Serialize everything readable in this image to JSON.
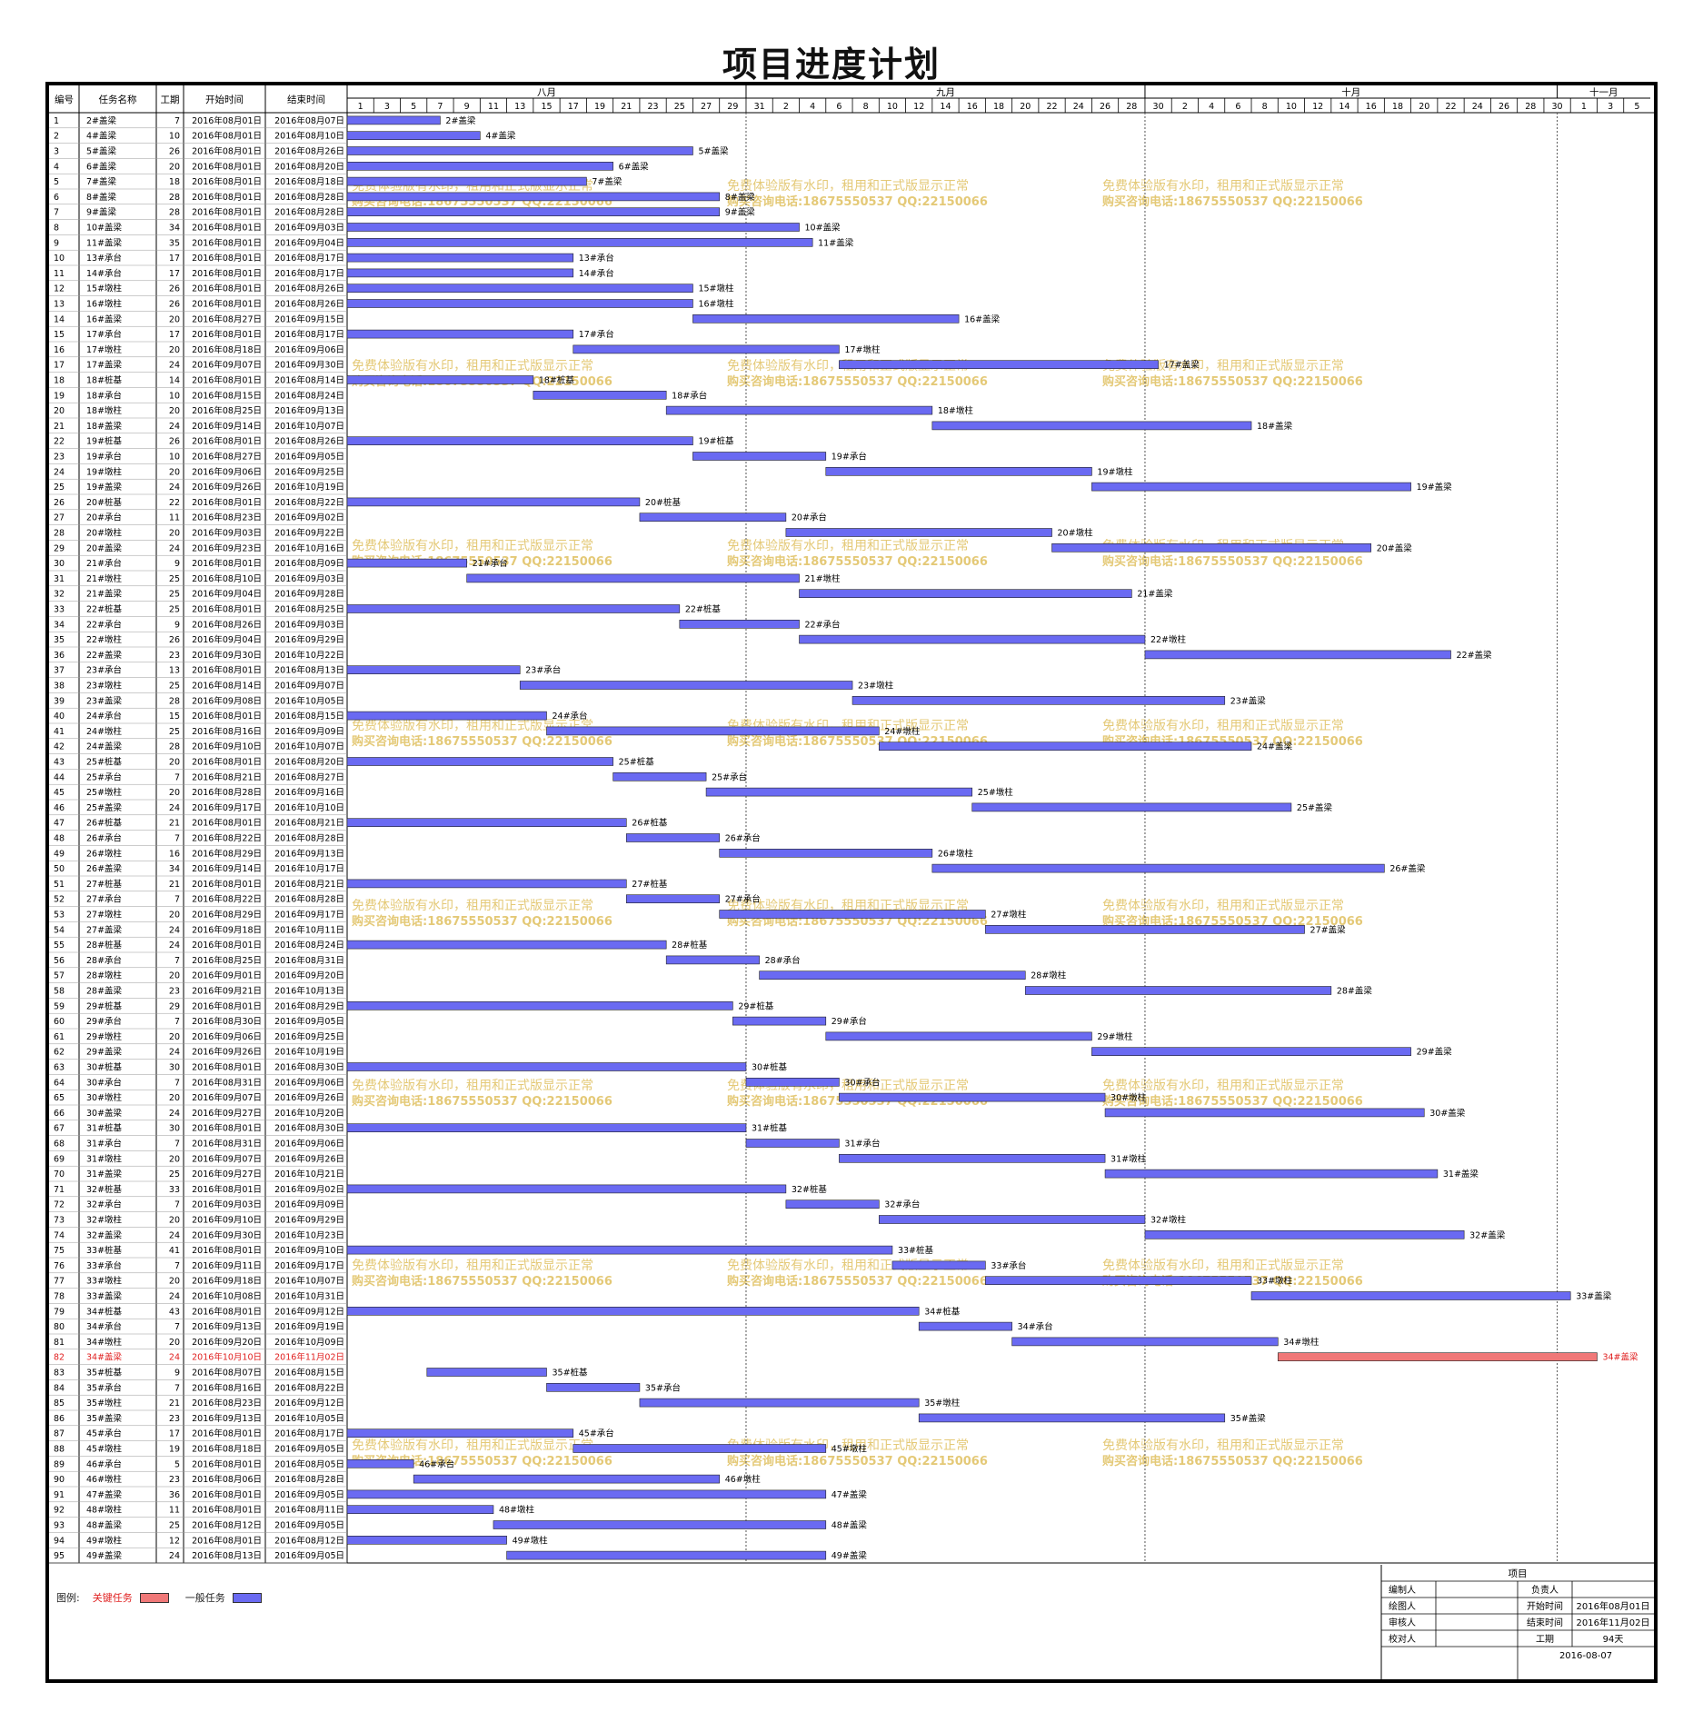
{
  "title": "项目进度计划",
  "table_headers": [
    "编号",
    "任务名称",
    "工期",
    "开始时间",
    "结束时间"
  ],
  "months": [
    {
      "label": "八月",
      "start": "2016-08-01"
    },
    {
      "label": "九月",
      "start": "2016-08-31"
    },
    {
      "label": "十月",
      "start": "2016-09-30"
    },
    {
      "label": "十一月",
      "start": "2016-10-31"
    }
  ],
  "day_ticks": [
    "1",
    "3",
    "5",
    "7",
    "9",
    "11",
    "13",
    "15",
    "17",
    "19",
    "21",
    "23",
    "25",
    "27",
    "29",
    "31",
    "2",
    "4",
    "6",
    "8",
    "10",
    "12",
    "14",
    "16",
    "18",
    "20",
    "22",
    "24",
    "26",
    "28",
    "30",
    "2",
    "4",
    "6",
    "8",
    "10",
    "12",
    "14",
    "16",
    "18",
    "20",
    "22",
    "24",
    "26",
    "28",
    "30",
    "1",
    "3",
    "5"
  ],
  "watermark": {
    "line1": "免费体验版有水印，租用和正式版显示正常",
    "line2": "购买咨询电话:18675550537 QQ:22150066"
  },
  "legend": {
    "label": "图例:",
    "critical": "关键任务",
    "normal": "一般任务"
  },
  "info_block": {
    "heading": "项目",
    "rows": [
      {
        "k1": "编制人",
        "v1": "",
        "k2": "负责人",
        "v2": ""
      },
      {
        "k1": "绘图人",
        "v1": "",
        "k2": "开始时间",
        "v2": "2016年08月01日"
      },
      {
        "k1": "审核人",
        "v1": "",
        "k2": "结束时间",
        "v2": "2016年11月02日"
      },
      {
        "k1": "校对人",
        "v1": "",
        "k2": "工期",
        "v2": "94天"
      }
    ],
    "date": "2016-08-07"
  },
  "colors": {
    "normal": "#6a6af2",
    "critical": "#f07878",
    "critical_text": "#e02020",
    "watermark": "#e0c060"
  },
  "chart_data": {
    "type": "gantt",
    "x_range": [
      "2016-08-01",
      "2016-11-06"
    ],
    "tasks": [
      {
        "id": 1,
        "name": "2#盖梁",
        "duration": 7,
        "start": "2016年08月01日",
        "end": "2016年08月07日"
      },
      {
        "id": 2,
        "name": "4#盖梁",
        "duration": 10,
        "start": "2016年08月01日",
        "end": "2016年08月10日"
      },
      {
        "id": 3,
        "name": "5#盖梁",
        "duration": 26,
        "start": "2016年08月01日",
        "end": "2016年08月26日"
      },
      {
        "id": 4,
        "name": "6#盖梁",
        "duration": 20,
        "start": "2016年08月01日",
        "end": "2016年08月20日"
      },
      {
        "id": 5,
        "name": "7#盖梁",
        "duration": 18,
        "start": "2016年08月01日",
        "end": "2016年08月18日"
      },
      {
        "id": 6,
        "name": "8#盖梁",
        "duration": 28,
        "start": "2016年08月01日",
        "end": "2016年08月28日"
      },
      {
        "id": 7,
        "name": "9#盖梁",
        "duration": 28,
        "start": "2016年08月01日",
        "end": "2016年08月28日"
      },
      {
        "id": 8,
        "name": "10#盖梁",
        "duration": 34,
        "start": "2016年08月01日",
        "end": "2016年09月03日"
      },
      {
        "id": 9,
        "name": "11#盖梁",
        "duration": 35,
        "start": "2016年08月01日",
        "end": "2016年09月04日"
      },
      {
        "id": 10,
        "name": "13#承台",
        "duration": 17,
        "start": "2016年08月01日",
        "end": "2016年08月17日"
      },
      {
        "id": 11,
        "name": "14#承台",
        "duration": 17,
        "start": "2016年08月01日",
        "end": "2016年08月17日"
      },
      {
        "id": 12,
        "name": "15#墩柱",
        "duration": 26,
        "start": "2016年08月01日",
        "end": "2016年08月26日"
      },
      {
        "id": 13,
        "name": "16#墩柱",
        "duration": 26,
        "start": "2016年08月01日",
        "end": "2016年08月26日"
      },
      {
        "id": 14,
        "name": "16#盖梁",
        "duration": 20,
        "start": "2016年08月27日",
        "end": "2016年09月15日"
      },
      {
        "id": 15,
        "name": "17#承台",
        "duration": 17,
        "start": "2016年08月01日",
        "end": "2016年08月17日"
      },
      {
        "id": 16,
        "name": "17#墩柱",
        "duration": 20,
        "start": "2016年08月18日",
        "end": "2016年09月06日"
      },
      {
        "id": 17,
        "name": "17#盖梁",
        "duration": 24,
        "start": "2016年09月07日",
        "end": "2016年09月30日"
      },
      {
        "id": 18,
        "name": "18#桩基",
        "duration": 14,
        "start": "2016年08月01日",
        "end": "2016年08月14日"
      },
      {
        "id": 19,
        "name": "18#承台",
        "duration": 10,
        "start": "2016年08月15日",
        "end": "2016年08月24日"
      },
      {
        "id": 20,
        "name": "18#墩柱",
        "duration": 20,
        "start": "2016年08月25日",
        "end": "2016年09月13日"
      },
      {
        "id": 21,
        "name": "18#盖梁",
        "duration": 24,
        "start": "2016年09月14日",
        "end": "2016年10月07日"
      },
      {
        "id": 22,
        "name": "19#桩基",
        "duration": 26,
        "start": "2016年08月01日",
        "end": "2016年08月26日"
      },
      {
        "id": 23,
        "name": "19#承台",
        "duration": 10,
        "start": "2016年08月27日",
        "end": "2016年09月05日"
      },
      {
        "id": 24,
        "name": "19#墩柱",
        "duration": 20,
        "start": "2016年09月06日",
        "end": "2016年09月25日"
      },
      {
        "id": 25,
        "name": "19#盖梁",
        "duration": 24,
        "start": "2016年09月26日",
        "end": "2016年10月19日"
      },
      {
        "id": 26,
        "name": "20#桩基",
        "duration": 22,
        "start": "2016年08月01日",
        "end": "2016年08月22日"
      },
      {
        "id": 27,
        "name": "20#承台",
        "duration": 11,
        "start": "2016年08月23日",
        "end": "2016年09月02日"
      },
      {
        "id": 28,
        "name": "20#墩柱",
        "duration": 20,
        "start": "2016年09月03日",
        "end": "2016年09月22日"
      },
      {
        "id": 29,
        "name": "20#盖梁",
        "duration": 24,
        "start": "2016年09月23日",
        "end": "2016年10月16日"
      },
      {
        "id": 30,
        "name": "21#承台",
        "duration": 9,
        "start": "2016年08月01日",
        "end": "2016年08月09日"
      },
      {
        "id": 31,
        "name": "21#墩柱",
        "duration": 25,
        "start": "2016年08月10日",
        "end": "2016年09月03日"
      },
      {
        "id": 32,
        "name": "21#盖梁",
        "duration": 25,
        "start": "2016年09月04日",
        "end": "2016年09月28日"
      },
      {
        "id": 33,
        "name": "22#桩基",
        "duration": 25,
        "start": "2016年08月01日",
        "end": "2016年08月25日"
      },
      {
        "id": 34,
        "name": "22#承台",
        "duration": 9,
        "start": "2016年08月26日",
        "end": "2016年09月03日"
      },
      {
        "id": 35,
        "name": "22#墩柱",
        "duration": 26,
        "start": "2016年09月04日",
        "end": "2016年09月29日"
      },
      {
        "id": 36,
        "name": "22#盖梁",
        "duration": 23,
        "start": "2016年09月30日",
        "end": "2016年10月22日"
      },
      {
        "id": 37,
        "name": "23#承台",
        "duration": 13,
        "start": "2016年08月01日",
        "end": "2016年08月13日"
      },
      {
        "id": 38,
        "name": "23#墩柱",
        "duration": 25,
        "start": "2016年08月14日",
        "end": "2016年09月07日"
      },
      {
        "id": 39,
        "name": "23#盖梁",
        "duration": 28,
        "start": "2016年09月08日",
        "end": "2016年10月05日"
      },
      {
        "id": 40,
        "name": "24#承台",
        "duration": 15,
        "start": "2016年08月01日",
        "end": "2016年08月15日"
      },
      {
        "id": 41,
        "name": "24#墩柱",
        "duration": 25,
        "start": "2016年08月16日",
        "end": "2016年09月09日"
      },
      {
        "id": 42,
        "name": "24#盖梁",
        "duration": 28,
        "start": "2016年09月10日",
        "end": "2016年10月07日"
      },
      {
        "id": 43,
        "name": "25#桩基",
        "duration": 20,
        "start": "2016年08月01日",
        "end": "2016年08月20日"
      },
      {
        "id": 44,
        "name": "25#承台",
        "duration": 7,
        "start": "2016年08月21日",
        "end": "2016年08月27日"
      },
      {
        "id": 45,
        "name": "25#墩柱",
        "duration": 20,
        "start": "2016年08月28日",
        "end": "2016年09月16日"
      },
      {
        "id": 46,
        "name": "25#盖梁",
        "duration": 24,
        "start": "2016年09月17日",
        "end": "2016年10月10日"
      },
      {
        "id": 47,
        "name": "26#桩基",
        "duration": 21,
        "start": "2016年08月01日",
        "end": "2016年08月21日"
      },
      {
        "id": 48,
        "name": "26#承台",
        "duration": 7,
        "start": "2016年08月22日",
        "end": "2016年08月28日"
      },
      {
        "id": 49,
        "name": "26#墩柱",
        "duration": 16,
        "start": "2016年08月29日",
        "end": "2016年09月13日"
      },
      {
        "id": 50,
        "name": "26#盖梁",
        "duration": 34,
        "start": "2016年09月14日",
        "end": "2016年10月17日"
      },
      {
        "id": 51,
        "name": "27#桩基",
        "duration": 21,
        "start": "2016年08月01日",
        "end": "2016年08月21日"
      },
      {
        "id": 52,
        "name": "27#承台",
        "duration": 7,
        "start": "2016年08月22日",
        "end": "2016年08月28日"
      },
      {
        "id": 53,
        "name": "27#墩柱",
        "duration": 20,
        "start": "2016年08月29日",
        "end": "2016年09月17日"
      },
      {
        "id": 54,
        "name": "27#盖梁",
        "duration": 24,
        "start": "2016年09月18日",
        "end": "2016年10月11日"
      },
      {
        "id": 55,
        "name": "28#桩基",
        "duration": 24,
        "start": "2016年08月01日",
        "end": "2016年08月24日"
      },
      {
        "id": 56,
        "name": "28#承台",
        "duration": 7,
        "start": "2016年08月25日",
        "end": "2016年08月31日"
      },
      {
        "id": 57,
        "name": "28#墩柱",
        "duration": 20,
        "start": "2016年09月01日",
        "end": "2016年09月20日"
      },
      {
        "id": 58,
        "name": "28#盖梁",
        "duration": 23,
        "start": "2016年09月21日",
        "end": "2016年10月13日"
      },
      {
        "id": 59,
        "name": "29#桩基",
        "duration": 29,
        "start": "2016年08月01日",
        "end": "2016年08月29日"
      },
      {
        "id": 60,
        "name": "29#承台",
        "duration": 7,
        "start": "2016年08月30日",
        "end": "2016年09月05日"
      },
      {
        "id": 61,
        "name": "29#墩柱",
        "duration": 20,
        "start": "2016年09月06日",
        "end": "2016年09月25日"
      },
      {
        "id": 62,
        "name": "29#盖梁",
        "duration": 24,
        "start": "2016年09月26日",
        "end": "2016年10月19日"
      },
      {
        "id": 63,
        "name": "30#桩基",
        "duration": 30,
        "start": "2016年08月01日",
        "end": "2016年08月30日"
      },
      {
        "id": 64,
        "name": "30#承台",
        "duration": 7,
        "start": "2016年08月31日",
        "end": "2016年09月06日"
      },
      {
        "id": 65,
        "name": "30#墩柱",
        "duration": 20,
        "start": "2016年09月07日",
        "end": "2016年09月26日"
      },
      {
        "id": 66,
        "name": "30#盖梁",
        "duration": 24,
        "start": "2016年09月27日",
        "end": "2016年10月20日"
      },
      {
        "id": 67,
        "name": "31#桩基",
        "duration": 30,
        "start": "2016年08月01日",
        "end": "2016年08月30日"
      },
      {
        "id": 68,
        "name": "31#承台",
        "duration": 7,
        "start": "2016年08月31日",
        "end": "2016年09月06日"
      },
      {
        "id": 69,
        "name": "31#墩柱",
        "duration": 20,
        "start": "2016年09月07日",
        "end": "2016年09月26日"
      },
      {
        "id": 70,
        "name": "31#盖梁",
        "duration": 25,
        "start": "2016年09月27日",
        "end": "2016年10月21日"
      },
      {
        "id": 71,
        "name": "32#桩基",
        "duration": 33,
        "start": "2016年08月01日",
        "end": "2016年09月02日"
      },
      {
        "id": 72,
        "name": "32#承台",
        "duration": 7,
        "start": "2016年09月03日",
        "end": "2016年09月09日"
      },
      {
        "id": 73,
        "name": "32#墩柱",
        "duration": 20,
        "start": "2016年09月10日",
        "end": "2016年09月29日"
      },
      {
        "id": 74,
        "name": "32#盖梁",
        "duration": 24,
        "start": "2016年09月30日",
        "end": "2016年10月23日"
      },
      {
        "id": 75,
        "name": "33#桩基",
        "duration": 41,
        "start": "2016年08月01日",
        "end": "2016年09月10日"
      },
      {
        "id": 76,
        "name": "33#承台",
        "duration": 7,
        "start": "2016年09月11日",
        "end": "2016年09月17日"
      },
      {
        "id": 77,
        "name": "33#墩柱",
        "duration": 20,
        "start": "2016年09月18日",
        "end": "2016年10月07日"
      },
      {
        "id": 78,
        "name": "33#盖梁",
        "duration": 24,
        "start": "2016年10月08日",
        "end": "2016年10月31日"
      },
      {
        "id": 79,
        "name": "34#桩基",
        "duration": 43,
        "start": "2016年08月01日",
        "end": "2016年09月12日"
      },
      {
        "id": 80,
        "name": "34#承台",
        "duration": 7,
        "start": "2016年09月13日",
        "end": "2016年09月19日"
      },
      {
        "id": 81,
        "name": "34#墩柱",
        "duration": 20,
        "start": "2016年09月20日",
        "end": "2016年10月09日"
      },
      {
        "id": 82,
        "name": "34#盖梁",
        "duration": 24,
        "start": "2016年10月10日",
        "end": "2016年11月02日",
        "critical": true
      },
      {
        "id": 83,
        "name": "35#桩基",
        "duration": 9,
        "start": "2016年08月07日",
        "end": "2016年08月15日"
      },
      {
        "id": 84,
        "name": "35#承台",
        "duration": 7,
        "start": "2016年08月16日",
        "end": "2016年08月22日"
      },
      {
        "id": 85,
        "name": "35#墩柱",
        "duration": 21,
        "start": "2016年08月23日",
        "end": "2016年09月12日"
      },
      {
        "id": 86,
        "name": "35#盖梁",
        "duration": 23,
        "start": "2016年09月13日",
        "end": "2016年10月05日"
      },
      {
        "id": 87,
        "name": "45#承台",
        "duration": 17,
        "start": "2016年08月01日",
        "end": "2016年08月17日"
      },
      {
        "id": 88,
        "name": "45#墩柱",
        "duration": 19,
        "start": "2016年08月18日",
        "end": "2016年09月05日"
      },
      {
        "id": 89,
        "name": "46#承台",
        "duration": 5,
        "start": "2016年08月01日",
        "end": "2016年08月05日"
      },
      {
        "id": 90,
        "name": "46#墩柱",
        "duration": 23,
        "start": "2016年08月06日",
        "end": "2016年08月28日"
      },
      {
        "id": 91,
        "name": "47#盖梁",
        "duration": 36,
        "start": "2016年08月01日",
        "end": "2016年09月05日"
      },
      {
        "id": 92,
        "name": "48#墩柱",
        "duration": 11,
        "start": "2016年08月01日",
        "end": "2016年08月11日"
      },
      {
        "id": 93,
        "name": "48#盖梁",
        "duration": 25,
        "start": "2016年08月12日",
        "end": "2016年09月05日"
      },
      {
        "id": 94,
        "name": "49#墩柱",
        "duration": 12,
        "start": "2016年08月01日",
        "end": "2016年08月12日"
      },
      {
        "id": 95,
        "name": "49#盖梁",
        "duration": 24,
        "start": "2016年08月13日",
        "end": "2016年09月05日"
      }
    ]
  }
}
